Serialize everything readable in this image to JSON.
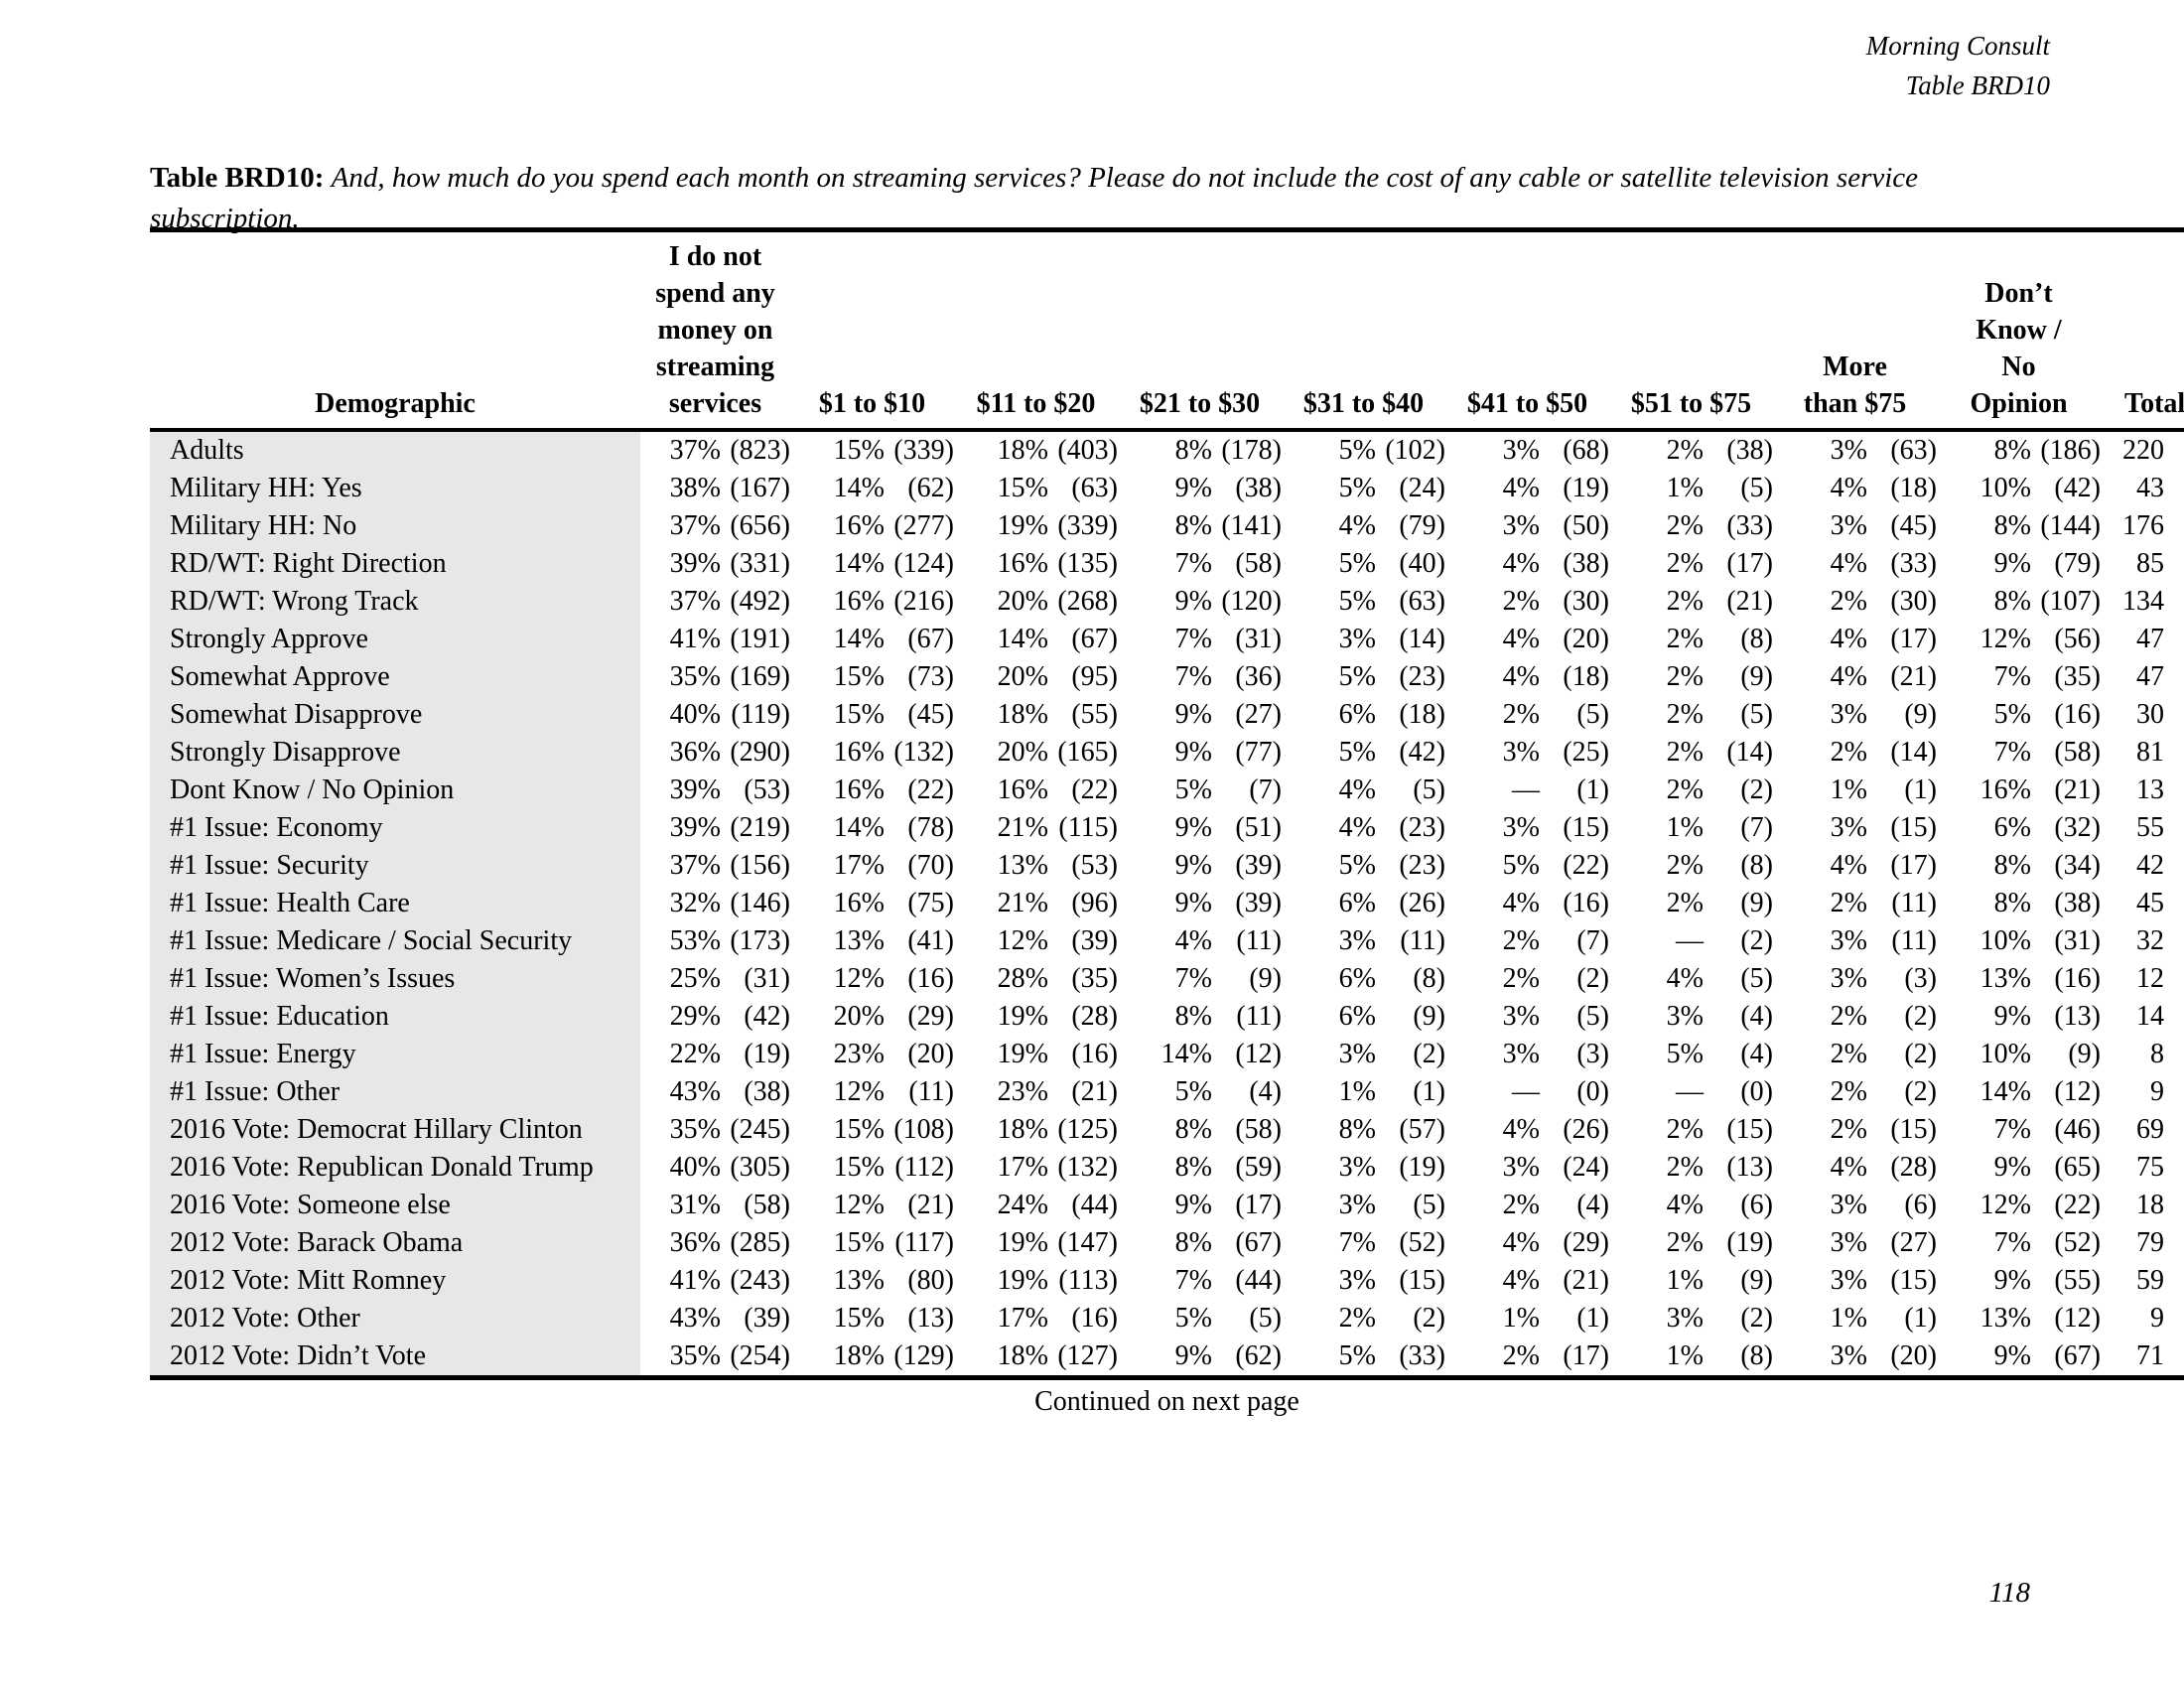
{
  "page": {
    "header_right": [
      "Morning Consult",
      "Table BRD10"
    ],
    "title_label": "Table BRD10:",
    "title_question_1": "And, how much do you spend each month on streaming services? Please do not include the cost of any cable or satellite television service",
    "title_question_2": "subscription.",
    "footer_continued": "Continued on next page",
    "page_number": "118"
  },
  "table": {
    "columns": [
      {
        "key": "demographic",
        "label_lines": [
          "Demographic"
        ]
      },
      {
        "key": "no-spend",
        "label_lines": [
          "I do not",
          "spend any",
          "money on",
          "streaming",
          "services"
        ]
      },
      {
        "key": "1-10",
        "label_lines": [
          "$1 to $10"
        ]
      },
      {
        "key": "11-20",
        "label_lines": [
          "$11 to $20"
        ]
      },
      {
        "key": "21-30",
        "label_lines": [
          "$21 to $30"
        ]
      },
      {
        "key": "31-40",
        "label_lines": [
          "$31 to $40"
        ]
      },
      {
        "key": "41-50",
        "label_lines": [
          "$41 to $50"
        ]
      },
      {
        "key": "51-75",
        "label_lines": [
          "$51 to $75"
        ]
      },
      {
        "key": "more-75",
        "label_lines": [
          "More",
          "than $75"
        ]
      },
      {
        "key": "dk-no-opinion",
        "label_lines": [
          "Don’t",
          "Know /",
          "No",
          "Opinion"
        ]
      },
      {
        "key": "total",
        "label_lines": [
          "Total"
        ]
      }
    ],
    "rows": [
      {
        "label": "Adults",
        "cells": [
          [
            "37%",
            "(823)"
          ],
          [
            "15%",
            "(339)"
          ],
          [
            "18%",
            "(403)"
          ],
          [
            "8%",
            "(178)"
          ],
          [
            "5%",
            "(102)"
          ],
          [
            "3%",
            "(68)"
          ],
          [
            "2%",
            "(38)"
          ],
          [
            "3%",
            "(63)"
          ],
          [
            "8%",
            "(186)"
          ]
        ],
        "total": "220"
      },
      {
        "label": "Military HH: Yes",
        "cells": [
          [
            "38%",
            "(167)"
          ],
          [
            "14%",
            "(62)"
          ],
          [
            "15%",
            "(63)"
          ],
          [
            "9%",
            "(38)"
          ],
          [
            "5%",
            "(24)"
          ],
          [
            "4%",
            "(19)"
          ],
          [
            "1%",
            "(5)"
          ],
          [
            "4%",
            "(18)"
          ],
          [
            "10%",
            "(42)"
          ]
        ],
        "total": "43"
      },
      {
        "label": "Military HH: No",
        "cells": [
          [
            "37%",
            "(656)"
          ],
          [
            "16%",
            "(277)"
          ],
          [
            "19%",
            "(339)"
          ],
          [
            "8%",
            "(141)"
          ],
          [
            "4%",
            "(79)"
          ],
          [
            "3%",
            "(50)"
          ],
          [
            "2%",
            "(33)"
          ],
          [
            "3%",
            "(45)"
          ],
          [
            "8%",
            "(144)"
          ]
        ],
        "total": "176"
      },
      {
        "label": "RD/WT: Right Direction",
        "cells": [
          [
            "39%",
            "(331)"
          ],
          [
            "14%",
            "(124)"
          ],
          [
            "16%",
            "(135)"
          ],
          [
            "7%",
            "(58)"
          ],
          [
            "5%",
            "(40)"
          ],
          [
            "4%",
            "(38)"
          ],
          [
            "2%",
            "(17)"
          ],
          [
            "4%",
            "(33)"
          ],
          [
            "9%",
            "(79)"
          ]
        ],
        "total": "85"
      },
      {
        "label": "RD/WT: Wrong Track",
        "cells": [
          [
            "37%",
            "(492)"
          ],
          [
            "16%",
            "(216)"
          ],
          [
            "20%",
            "(268)"
          ],
          [
            "9%",
            "(120)"
          ],
          [
            "5%",
            "(63)"
          ],
          [
            "2%",
            "(30)"
          ],
          [
            "2%",
            "(21)"
          ],
          [
            "2%",
            "(30)"
          ],
          [
            "8%",
            "(107)"
          ]
        ],
        "total": "134"
      },
      {
        "label": "Strongly Approve",
        "cells": [
          [
            "41%",
            "(191)"
          ],
          [
            "14%",
            "(67)"
          ],
          [
            "14%",
            "(67)"
          ],
          [
            "7%",
            "(31)"
          ],
          [
            "3%",
            "(14)"
          ],
          [
            "4%",
            "(20)"
          ],
          [
            "2%",
            "(8)"
          ],
          [
            "4%",
            "(17)"
          ],
          [
            "12%",
            "(56)"
          ]
        ],
        "total": "47"
      },
      {
        "label": "Somewhat Approve",
        "cells": [
          [
            "35%",
            "(169)"
          ],
          [
            "15%",
            "(73)"
          ],
          [
            "20%",
            "(95)"
          ],
          [
            "7%",
            "(36)"
          ],
          [
            "5%",
            "(23)"
          ],
          [
            "4%",
            "(18)"
          ],
          [
            "2%",
            "(9)"
          ],
          [
            "4%",
            "(21)"
          ],
          [
            "7%",
            "(35)"
          ]
        ],
        "total": "47"
      },
      {
        "label": "Somewhat Disapprove",
        "cells": [
          [
            "40%",
            "(119)"
          ],
          [
            "15%",
            "(45)"
          ],
          [
            "18%",
            "(55)"
          ],
          [
            "9%",
            "(27)"
          ],
          [
            "6%",
            "(18)"
          ],
          [
            "2%",
            "(5)"
          ],
          [
            "2%",
            "(5)"
          ],
          [
            "3%",
            "(9)"
          ],
          [
            "5%",
            "(16)"
          ]
        ],
        "total": "30"
      },
      {
        "label": "Strongly Disapprove",
        "cells": [
          [
            "36%",
            "(290)"
          ],
          [
            "16%",
            "(132)"
          ],
          [
            "20%",
            "(165)"
          ],
          [
            "9%",
            "(77)"
          ],
          [
            "5%",
            "(42)"
          ],
          [
            "3%",
            "(25)"
          ],
          [
            "2%",
            "(14)"
          ],
          [
            "2%",
            "(14)"
          ],
          [
            "7%",
            "(58)"
          ]
        ],
        "total": "81"
      },
      {
        "label": "Dont Know / No Opinion",
        "cells": [
          [
            "39%",
            "(53)"
          ],
          [
            "16%",
            "(22)"
          ],
          [
            "16%",
            "(22)"
          ],
          [
            "5%",
            "(7)"
          ],
          [
            "4%",
            "(5)"
          ],
          [
            "—",
            "(1)"
          ],
          [
            "2%",
            "(2)"
          ],
          [
            "1%",
            "(1)"
          ],
          [
            "16%",
            "(21)"
          ]
        ],
        "total": "13"
      },
      {
        "label": "#1 Issue: Economy",
        "cells": [
          [
            "39%",
            "(219)"
          ],
          [
            "14%",
            "(78)"
          ],
          [
            "21%",
            "(115)"
          ],
          [
            "9%",
            "(51)"
          ],
          [
            "4%",
            "(23)"
          ],
          [
            "3%",
            "(15)"
          ],
          [
            "1%",
            "(7)"
          ],
          [
            "3%",
            "(15)"
          ],
          [
            "6%",
            "(32)"
          ]
        ],
        "total": "55"
      },
      {
        "label": "#1 Issue: Security",
        "cells": [
          [
            "37%",
            "(156)"
          ],
          [
            "17%",
            "(70)"
          ],
          [
            "13%",
            "(53)"
          ],
          [
            "9%",
            "(39)"
          ],
          [
            "5%",
            "(23)"
          ],
          [
            "5%",
            "(22)"
          ],
          [
            "2%",
            "(8)"
          ],
          [
            "4%",
            "(17)"
          ],
          [
            "8%",
            "(34)"
          ]
        ],
        "total": "42"
      },
      {
        "label": "#1 Issue: Health Care",
        "cells": [
          [
            "32%",
            "(146)"
          ],
          [
            "16%",
            "(75)"
          ],
          [
            "21%",
            "(96)"
          ],
          [
            "9%",
            "(39)"
          ],
          [
            "6%",
            "(26)"
          ],
          [
            "4%",
            "(16)"
          ],
          [
            "2%",
            "(9)"
          ],
          [
            "2%",
            "(11)"
          ],
          [
            "8%",
            "(38)"
          ]
        ],
        "total": "45"
      },
      {
        "label": "#1 Issue: Medicare / Social Security",
        "cells": [
          [
            "53%",
            "(173)"
          ],
          [
            "13%",
            "(41)"
          ],
          [
            "12%",
            "(39)"
          ],
          [
            "4%",
            "(11)"
          ],
          [
            "3%",
            "(11)"
          ],
          [
            "2%",
            "(7)"
          ],
          [
            "—",
            "(2)"
          ],
          [
            "3%",
            "(11)"
          ],
          [
            "10%",
            "(31)"
          ]
        ],
        "total": "32"
      },
      {
        "label": "#1 Issue: Women’s Issues",
        "cells": [
          [
            "25%",
            "(31)"
          ],
          [
            "12%",
            "(16)"
          ],
          [
            "28%",
            "(35)"
          ],
          [
            "7%",
            "(9)"
          ],
          [
            "6%",
            "(8)"
          ],
          [
            "2%",
            "(2)"
          ],
          [
            "4%",
            "(5)"
          ],
          [
            "3%",
            "(3)"
          ],
          [
            "13%",
            "(16)"
          ]
        ],
        "total": "12"
      },
      {
        "label": "#1 Issue: Education",
        "cells": [
          [
            "29%",
            "(42)"
          ],
          [
            "20%",
            "(29)"
          ],
          [
            "19%",
            "(28)"
          ],
          [
            "8%",
            "(11)"
          ],
          [
            "6%",
            "(9)"
          ],
          [
            "3%",
            "(5)"
          ],
          [
            "3%",
            "(4)"
          ],
          [
            "2%",
            "(2)"
          ],
          [
            "9%",
            "(13)"
          ]
        ],
        "total": "14"
      },
      {
        "label": "#1 Issue: Energy",
        "cells": [
          [
            "22%",
            "(19)"
          ],
          [
            "23%",
            "(20)"
          ],
          [
            "19%",
            "(16)"
          ],
          [
            "14%",
            "(12)"
          ],
          [
            "3%",
            "(2)"
          ],
          [
            "3%",
            "(3)"
          ],
          [
            "5%",
            "(4)"
          ],
          [
            "2%",
            "(2)"
          ],
          [
            "10%",
            "(9)"
          ]
        ],
        "total": "8"
      },
      {
        "label": "#1 Issue: Other",
        "cells": [
          [
            "43%",
            "(38)"
          ],
          [
            "12%",
            "(11)"
          ],
          [
            "23%",
            "(21)"
          ],
          [
            "5%",
            "(4)"
          ],
          [
            "1%",
            "(1)"
          ],
          [
            "—",
            "(0)"
          ],
          [
            "—",
            "(0)"
          ],
          [
            "2%",
            "(2)"
          ],
          [
            "14%",
            "(12)"
          ]
        ],
        "total": "9"
      },
      {
        "label": "2016 Vote: Democrat Hillary Clinton",
        "cells": [
          [
            "35%",
            "(245)"
          ],
          [
            "15%",
            "(108)"
          ],
          [
            "18%",
            "(125)"
          ],
          [
            "8%",
            "(58)"
          ],
          [
            "8%",
            "(57)"
          ],
          [
            "4%",
            "(26)"
          ],
          [
            "2%",
            "(15)"
          ],
          [
            "2%",
            "(15)"
          ],
          [
            "7%",
            "(46)"
          ]
        ],
        "total": "69"
      },
      {
        "label": "2016 Vote: Republican Donald Trump",
        "cells": [
          [
            "40%",
            "(305)"
          ],
          [
            "15%",
            "(112)"
          ],
          [
            "17%",
            "(132)"
          ],
          [
            "8%",
            "(59)"
          ],
          [
            "3%",
            "(19)"
          ],
          [
            "3%",
            "(24)"
          ],
          [
            "2%",
            "(13)"
          ],
          [
            "4%",
            "(28)"
          ],
          [
            "9%",
            "(65)"
          ]
        ],
        "total": "75"
      },
      {
        "label": "2016 Vote: Someone else",
        "cells": [
          [
            "31%",
            "(58)"
          ],
          [
            "12%",
            "(21)"
          ],
          [
            "24%",
            "(44)"
          ],
          [
            "9%",
            "(17)"
          ],
          [
            "3%",
            "(5)"
          ],
          [
            "2%",
            "(4)"
          ],
          [
            "4%",
            "(6)"
          ],
          [
            "3%",
            "(6)"
          ],
          [
            "12%",
            "(22)"
          ]
        ],
        "total": "18"
      },
      {
        "label": "2012 Vote: Barack Obama",
        "cells": [
          [
            "36%",
            "(285)"
          ],
          [
            "15%",
            "(117)"
          ],
          [
            "19%",
            "(147)"
          ],
          [
            "8%",
            "(67)"
          ],
          [
            "7%",
            "(52)"
          ],
          [
            "4%",
            "(29)"
          ],
          [
            "2%",
            "(19)"
          ],
          [
            "3%",
            "(27)"
          ],
          [
            "7%",
            "(52)"
          ]
        ],
        "total": "79"
      },
      {
        "label": "2012 Vote: Mitt Romney",
        "cells": [
          [
            "41%",
            "(243)"
          ],
          [
            "13%",
            "(80)"
          ],
          [
            "19%",
            "(113)"
          ],
          [
            "7%",
            "(44)"
          ],
          [
            "3%",
            "(15)"
          ],
          [
            "4%",
            "(21)"
          ],
          [
            "1%",
            "(9)"
          ],
          [
            "3%",
            "(15)"
          ],
          [
            "9%",
            "(55)"
          ]
        ],
        "total": "59"
      },
      {
        "label": "2012 Vote: Other",
        "cells": [
          [
            "43%",
            "(39)"
          ],
          [
            "15%",
            "(13)"
          ],
          [
            "17%",
            "(16)"
          ],
          [
            "5%",
            "(5)"
          ],
          [
            "2%",
            "(2)"
          ],
          [
            "1%",
            "(1)"
          ],
          [
            "3%",
            "(2)"
          ],
          [
            "1%",
            "(1)"
          ],
          [
            "13%",
            "(12)"
          ]
        ],
        "total": "9"
      },
      {
        "label": "2012 Vote: Didn’t Vote",
        "cells": [
          [
            "35%",
            "(254)"
          ],
          [
            "18%",
            "(129)"
          ],
          [
            "18%",
            "(127)"
          ],
          [
            "9%",
            "(62)"
          ],
          [
            "5%",
            "(33)"
          ],
          [
            "2%",
            "(17)"
          ],
          [
            "1%",
            "(8)"
          ],
          [
            "3%",
            "(20)"
          ],
          [
            "9%",
            "(67)"
          ]
        ],
        "total": "71"
      }
    ]
  }
}
